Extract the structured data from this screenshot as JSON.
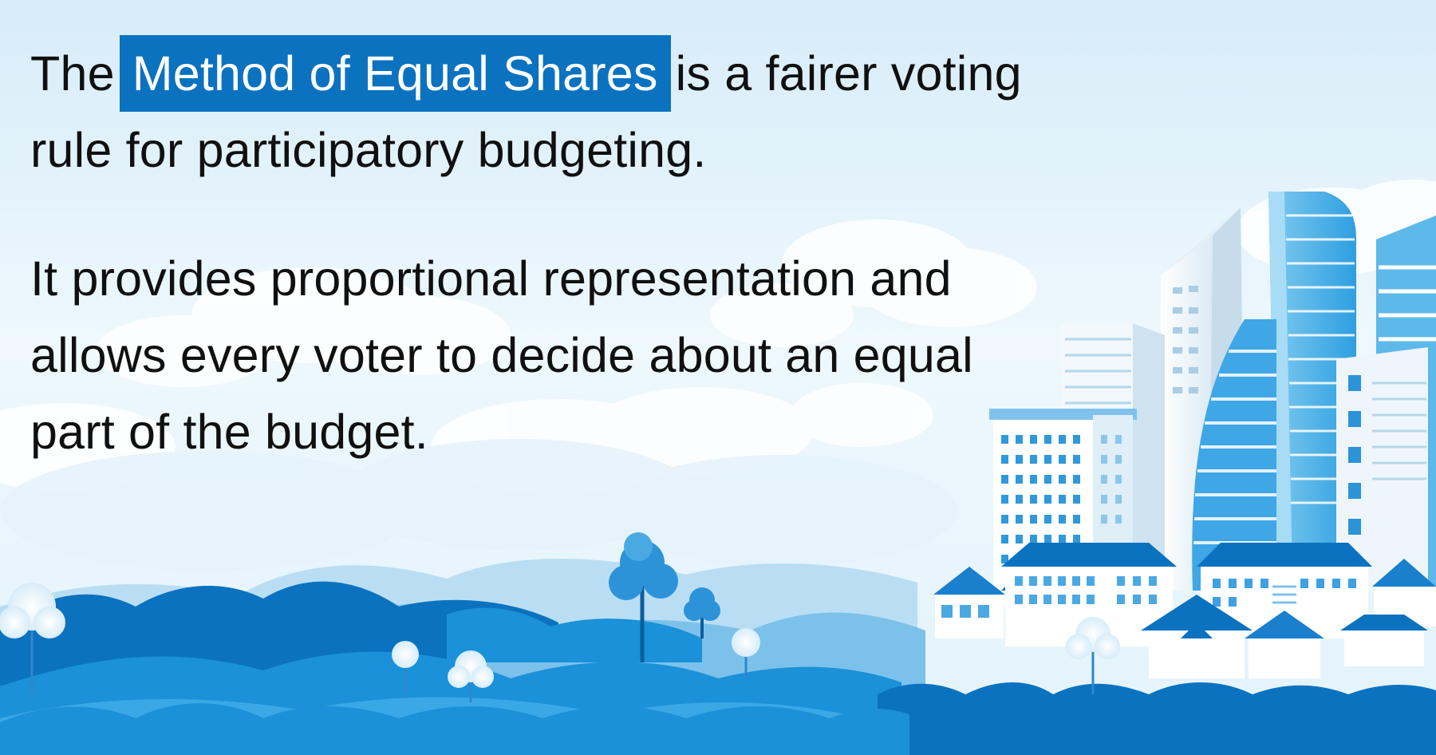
{
  "intro": {
    "before": "The",
    "highlight": "Method of Equal Shares",
    "after": "is a fairer voting rule for participatory budgeting."
  },
  "description": "It provides proportional representation and allows every voter to decide about an equal part of the budget.",
  "colors": {
    "highlight": "#0b72c0",
    "highlight_text": "#ffffff",
    "text": "#101010",
    "sky": "#e9f6fd",
    "hills_dark": "#0b72c0",
    "hills_mid": "#1a91d8",
    "hills_light": "#7cc1ea",
    "building_glass": "#4fb2e8"
  },
  "illustration": {
    "subject": "city-skyline-with-hills-and-trees"
  }
}
